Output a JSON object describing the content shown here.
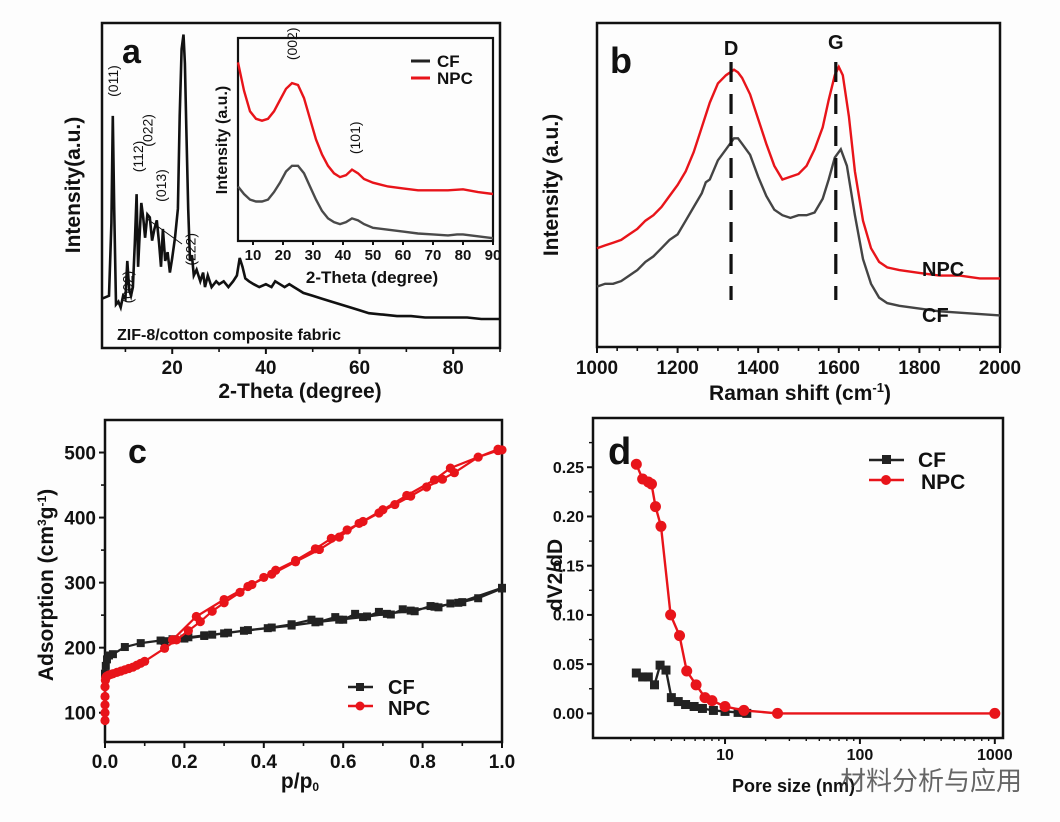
{
  "figure": {
    "watermark": "材料分析与应用",
    "colors": {
      "CF": "#222222",
      "NPC": "#e8141a",
      "CF_raman": "#444444",
      "axis": "#111111"
    }
  },
  "chart_data": [
    {
      "id": "a",
      "panel_label": "a",
      "type": "line",
      "title": "",
      "xlabel": "2-Theta (degree)",
      "ylabel": "Intensity(a.u.)",
      "xlim": [
        5,
        90
      ],
      "ylim": [
        0,
        1
      ],
      "xticks": [
        20,
        40,
        60,
        80
      ],
      "y_ticks_shown": false,
      "grid": false,
      "annotation": "ZIF-8/cotton composite fabric",
      "series": [
        {
          "name": "ZIF-8/cotton composite fabric",
          "color_key": "CF",
          "x": [
            5,
            6.5,
            7.0,
            7.3,
            7.6,
            8.0,
            8.5,
            9.0,
            9.5,
            10.0,
            10.4,
            10.8,
            11.2,
            11.6,
            12.0,
            12.4,
            12.7,
            13.0,
            13.4,
            13.8,
            14.2,
            14.7,
            15.2,
            15.7,
            16.2,
            16.7,
            17.2,
            17.6,
            18.0,
            18.5,
            19.0,
            19.5,
            20.0,
            20.6,
            21.2,
            21.6,
            22.0,
            22.4,
            22.7,
            23.0,
            23.4,
            23.8,
            24.2,
            24.6,
            25.2,
            26.0,
            26.6,
            27.0,
            27.6,
            28.4,
            29.4,
            30.0,
            31.0,
            32.0,
            33.0,
            33.8,
            34.4,
            35.0,
            35.6,
            36.4,
            37.4,
            38.6,
            40.0,
            41.2,
            42.0,
            43.0,
            44.0,
            45.0,
            46.0,
            47.0,
            48.0,
            50.0,
            52.0,
            54.0,
            56.0,
            58.0,
            60.0,
            62.0,
            65.0,
            68.0,
            71.0,
            74.0,
            77.0,
            80.0,
            83.0,
            86.0,
            88.0,
            90.0
          ],
          "y": [
            0.09,
            0.1,
            0.35,
            0.72,
            0.4,
            0.07,
            0.08,
            0.06,
            0.1,
            0.09,
            0.22,
            0.12,
            0.1,
            0.13,
            0.28,
            0.45,
            0.2,
            0.3,
            0.42,
            0.37,
            0.3,
            0.38,
            0.37,
            0.29,
            0.33,
            0.36,
            0.28,
            0.2,
            0.33,
            0.22,
            0.25,
            0.18,
            0.23,
            0.3,
            0.4,
            0.72,
            0.95,
            1.0,
            0.9,
            0.68,
            0.4,
            0.22,
            0.24,
            0.17,
            0.19,
            0.15,
            0.18,
            0.13,
            0.17,
            0.13,
            0.15,
            0.14,
            0.15,
            0.13,
            0.15,
            0.17,
            0.23,
            0.2,
            0.16,
            0.15,
            0.14,
            0.13,
            0.14,
            0.13,
            0.15,
            0.14,
            0.13,
            0.14,
            0.13,
            0.12,
            0.11,
            0.1,
            0.09,
            0.08,
            0.07,
            0.06,
            0.05,
            0.04,
            0.035,
            0.03,
            0.03,
            0.025,
            0.025,
            0.025,
            0.025,
            0.02,
            0.02,
            0.02
          ]
        }
      ],
      "peak_labels": [
        {
          "label": "(011)",
          "x": 7.3
        },
        {
          "label": "(002)",
          "x": 10.4
        },
        {
          "label": "(112)",
          "x": 12.7
        },
        {
          "label": "(022)",
          "x": 14.7
        },
        {
          "label": "(013)",
          "x": 17.6
        },
        {
          "label": "(222)",
          "x": 23.9
        }
      ],
      "inset": {
        "type": "line",
        "xlabel": "2-Theta (degree)",
        "ylabel": "Intensity (a.u.)",
        "xlim": [
          5,
          90
        ],
        "ylim": [
          0,
          1
        ],
        "xticks": [
          10,
          20,
          30,
          40,
          50,
          60,
          70,
          80,
          90
        ],
        "legend": {
          "position": "top-right",
          "entries": [
            "CF",
            "NPC"
          ]
        },
        "peak_labels": [
          {
            "label": "(002)",
            "x": 23
          },
          {
            "label": "(101)",
            "x": 44
          }
        ],
        "series": [
          {
            "name": "CF",
            "color_key": "CF",
            "x": [
              5,
              7,
              9,
              11,
              13,
              15,
              17,
              19,
              21,
              23,
              25,
              27,
              29,
              31,
              33,
              35,
              37,
              39,
              41,
              43,
              45,
              47,
              50,
              55,
              60,
              65,
              70,
              75,
              78,
              80,
              85,
              90
            ],
            "y": [
              0.29,
              0.25,
              0.22,
              0.21,
              0.21,
              0.22,
              0.26,
              0.31,
              0.37,
              0.4,
              0.4,
              0.36,
              0.29,
              0.22,
              0.16,
              0.12,
              0.1,
              0.09,
              0.1,
              0.12,
              0.11,
              0.09,
              0.07,
              0.06,
              0.05,
              0.04,
              0.035,
              0.03,
              0.035,
              0.035,
              0.025,
              0.015
            ]
          },
          {
            "name": "NPC",
            "color_key": "NPC",
            "x": [
              5,
              7,
              9,
              11,
              13,
              15,
              17,
              19,
              21,
              23,
              25,
              27,
              29,
              31,
              33,
              35,
              37,
              39,
              41,
              43,
              45,
              47,
              50,
              55,
              60,
              65,
              70,
              75,
              80,
              85,
              90
            ],
            "y": [
              0.95,
              0.8,
              0.69,
              0.65,
              0.64,
              0.65,
              0.69,
              0.75,
              0.81,
              0.84,
              0.83,
              0.76,
              0.65,
              0.54,
              0.46,
              0.4,
              0.36,
              0.34,
              0.35,
              0.38,
              0.36,
              0.33,
              0.31,
              0.29,
              0.28,
              0.27,
              0.27,
              0.27,
              0.275,
              0.26,
              0.25
            ]
          }
        ]
      }
    },
    {
      "id": "b",
      "panel_label": "b",
      "type": "line",
      "title": "",
      "xlabel": "Raman shift (cm",
      "xlabel_sup": "-1",
      "xlabel_end": ")",
      "ylabel": "Intensity (a.u.)",
      "xlim": [
        1000,
        2000
      ],
      "ylim": [
        0,
        1
      ],
      "xticks": [
        1000,
        1200,
        1400,
        1600,
        1800,
        2000
      ],
      "y_ticks_shown": false,
      "grid": false,
      "band_labels": [
        {
          "label": "D",
          "x": 1350
        },
        {
          "label": "G",
          "x": 1600
        }
      ],
      "series": [
        {
          "name": "NPC",
          "color_key": "NPC",
          "x": [
            1000,
            1020,
            1040,
            1060,
            1080,
            1100,
            1120,
            1140,
            1160,
            1180,
            1200,
            1220,
            1240,
            1260,
            1280,
            1300,
            1320,
            1340,
            1350,
            1360,
            1380,
            1400,
            1420,
            1440,
            1460,
            1480,
            1500,
            1520,
            1540,
            1560,
            1575,
            1590,
            1600,
            1610,
            1625,
            1640,
            1660,
            1680,
            1700,
            1720,
            1750,
            1800,
            1850,
            1900,
            1950,
            2000
          ],
          "y": [
            0.3,
            0.31,
            0.32,
            0.33,
            0.35,
            0.37,
            0.4,
            0.42,
            0.45,
            0.49,
            0.53,
            0.58,
            0.65,
            0.74,
            0.83,
            0.9,
            0.93,
            0.95,
            0.94,
            0.92,
            0.86,
            0.77,
            0.68,
            0.6,
            0.55,
            0.56,
            0.57,
            0.6,
            0.66,
            0.74,
            0.84,
            0.93,
            0.96,
            0.93,
            0.78,
            0.58,
            0.4,
            0.3,
            0.25,
            0.23,
            0.22,
            0.21,
            0.2,
            0.2,
            0.19,
            0.19
          ]
        },
        {
          "name": "CF",
          "color_key": "CF_raman",
          "x": [
            1000,
            1020,
            1040,
            1060,
            1080,
            1100,
            1120,
            1140,
            1160,
            1180,
            1200,
            1220,
            1240,
            1260,
            1270,
            1280,
            1300,
            1320,
            1340,
            1350,
            1360,
            1380,
            1400,
            1420,
            1440,
            1460,
            1480,
            1500,
            1520,
            1540,
            1560,
            1575,
            1590,
            1605,
            1620,
            1640,
            1660,
            1680,
            1700,
            1720,
            1750,
            1800,
            1850,
            1900,
            1950,
            2000
          ],
          "y": [
            0.16,
            0.17,
            0.17,
            0.18,
            0.2,
            0.22,
            0.25,
            0.27,
            0.3,
            0.33,
            0.35,
            0.4,
            0.45,
            0.5,
            0.54,
            0.55,
            0.62,
            0.66,
            0.7,
            0.7,
            0.68,
            0.64,
            0.56,
            0.49,
            0.44,
            0.42,
            0.41,
            0.42,
            0.42,
            0.43,
            0.48,
            0.55,
            0.63,
            0.66,
            0.6,
            0.42,
            0.26,
            0.17,
            0.12,
            0.1,
            0.09,
            0.08,
            0.07,
            0.065,
            0.06,
            0.055
          ]
        }
      ],
      "curve_labels": [
        {
          "label": "NPC"
        },
        {
          "label": "CF"
        }
      ]
    },
    {
      "id": "c",
      "panel_label": "c",
      "type": "scatter-line",
      "title": "",
      "xlabel": "p/p",
      "xlabel_sub": "0",
      "ylabel": "Adsorption  (cm",
      "ylabel_sup": "3",
      "ylabel_mid": "g",
      "ylabel_sup2": "-1",
      "ylabel_end": ")",
      "xlim": [
        0.0,
        1.0
      ],
      "ylim": [
        55,
        550
      ],
      "xticks": [
        "0.0",
        "0.2",
        "0.4",
        "0.6",
        "0.8",
        "1.0"
      ],
      "yticks": [
        "100",
        "200",
        "300",
        "400",
        "500"
      ],
      "grid": false,
      "legend": {
        "position": "bottom-right",
        "entries": [
          "CF",
          "NPC"
        ]
      },
      "series": [
        {
          "name": "CF",
          "marker": "square",
          "color_key": "CF",
          "x": [
            0.0,
            0.002,
            0.005,
            0.01,
            0.02,
            0.05,
            0.09,
            0.14,
            0.17,
            0.21,
            0.25,
            0.27,
            0.31,
            0.36,
            0.42,
            0.47,
            0.52,
            0.54,
            0.58,
            0.6,
            0.63,
            0.66,
            0.69,
            0.72,
            0.75,
            0.78,
            0.82,
            0.84,
            0.87,
            0.9,
            0.94,
            1.0,
            1.0,
            0.89,
            0.83,
            0.77,
            0.71,
            0.65,
            0.59,
            0.53,
            0.47,
            0.41,
            0.35,
            0.3,
            0.25,
            0.2,
            0.15
          ],
          "y": [
            160,
            172,
            182,
            188,
            190,
            201,
            207,
            211,
            213,
            216,
            219,
            220,
            223,
            227,
            231,
            236,
            243,
            240,
            247,
            243,
            252,
            248,
            255,
            251,
            259,
            256,
            264,
            262,
            268,
            270,
            276,
            291,
            292,
            269,
            263,
            257,
            252,
            247,
            243,
            239,
            234,
            230,
            226,
            222,
            218,
            214,
            210
          ]
        },
        {
          "name": "NPC",
          "marker": "circle",
          "color_key": "NPC",
          "x": [
            0.0,
            0.0,
            0.0,
            0.0,
            0.0,
            0.001,
            0.002,
            0.004,
            0.007,
            0.01,
            0.015,
            0.02,
            0.03,
            0.04,
            0.05,
            0.06,
            0.07,
            0.08,
            0.09,
            0.1,
            0.15,
            0.18,
            0.21,
            0.24,
            0.27,
            0.3,
            0.34,
            0.37,
            0.4,
            0.43,
            0.48,
            0.53,
            0.57,
            0.61,
            0.65,
            0.69,
            0.73,
            0.77,
            0.81,
            0.85,
            0.88,
            0.94,
            0.99,
            1.0,
            0.99,
            0.87,
            0.83,
            0.76,
            0.7,
            0.64,
            0.59,
            0.54,
            0.48,
            0.42,
            0.36,
            0.3,
            0.23,
            0.17
          ],
          "y": [
            88,
            100,
            112,
            125,
            140,
            150,
            154,
            156,
            157,
            158,
            159,
            160,
            162,
            164,
            166,
            168,
            170,
            173,
            176,
            179,
            199,
            212,
            226,
            240,
            256,
            269,
            285,
            297,
            308,
            319,
            334,
            352,
            368,
            381,
            394,
            407,
            420,
            433,
            447,
            459,
            469,
            493,
            503,
            504,
            505,
            476,
            458,
            434,
            412,
            391,
            370,
            351,
            332,
            313,
            294,
            274,
            248,
            212
          ]
        }
      ]
    },
    {
      "id": "d",
      "panel_label": "d",
      "type": "scatter-line",
      "title": "",
      "xlabel": "Pore size (nm)",
      "ylabel": "dV2/dD",
      "xscale": "log",
      "xlim": [
        1.05,
        1150
      ],
      "ylim": [
        -0.025,
        0.3
      ],
      "xticks": [
        "10",
        "100",
        "1000"
      ],
      "yticks": [
        "0.00",
        "0.05",
        "0.10",
        "0.15",
        "0.20",
        "0.25"
      ],
      "grid": false,
      "legend": {
        "position": "top-right",
        "entries": [
          "CF",
          "NPC"
        ]
      },
      "series": [
        {
          "name": "CF",
          "marker": "square",
          "color_key": "CF",
          "x": [
            2.2,
            2.45,
            2.7,
            3.0,
            3.3,
            3.65,
            4.0,
            4.5,
            5.1,
            5.9,
            6.8,
            8.2,
            10.0,
            12.5,
            14.5
          ],
          "y": [
            0.041,
            0.037,
            0.037,
            0.029,
            0.049,
            0.044,
            0.016,
            0.012,
            0.009,
            0.007,
            0.005,
            0.003,
            0.002,
            0.001,
            0.0
          ]
        },
        {
          "name": "NPC",
          "marker": "circle",
          "color_key": "NPC",
          "x": [
            2.2,
            2.45,
            2.7,
            2.85,
            3.05,
            3.35,
            3.95,
            4.6,
            5.2,
            6.1,
            7.1,
            8.0,
            10.0,
            13.8,
            24.5,
            1000
          ],
          "y": [
            0.253,
            0.238,
            0.235,
            0.233,
            0.21,
            0.19,
            0.1,
            0.079,
            0.043,
            0.029,
            0.016,
            0.013,
            0.007,
            0.003,
            0.0,
            0.0
          ]
        }
      ]
    }
  ]
}
